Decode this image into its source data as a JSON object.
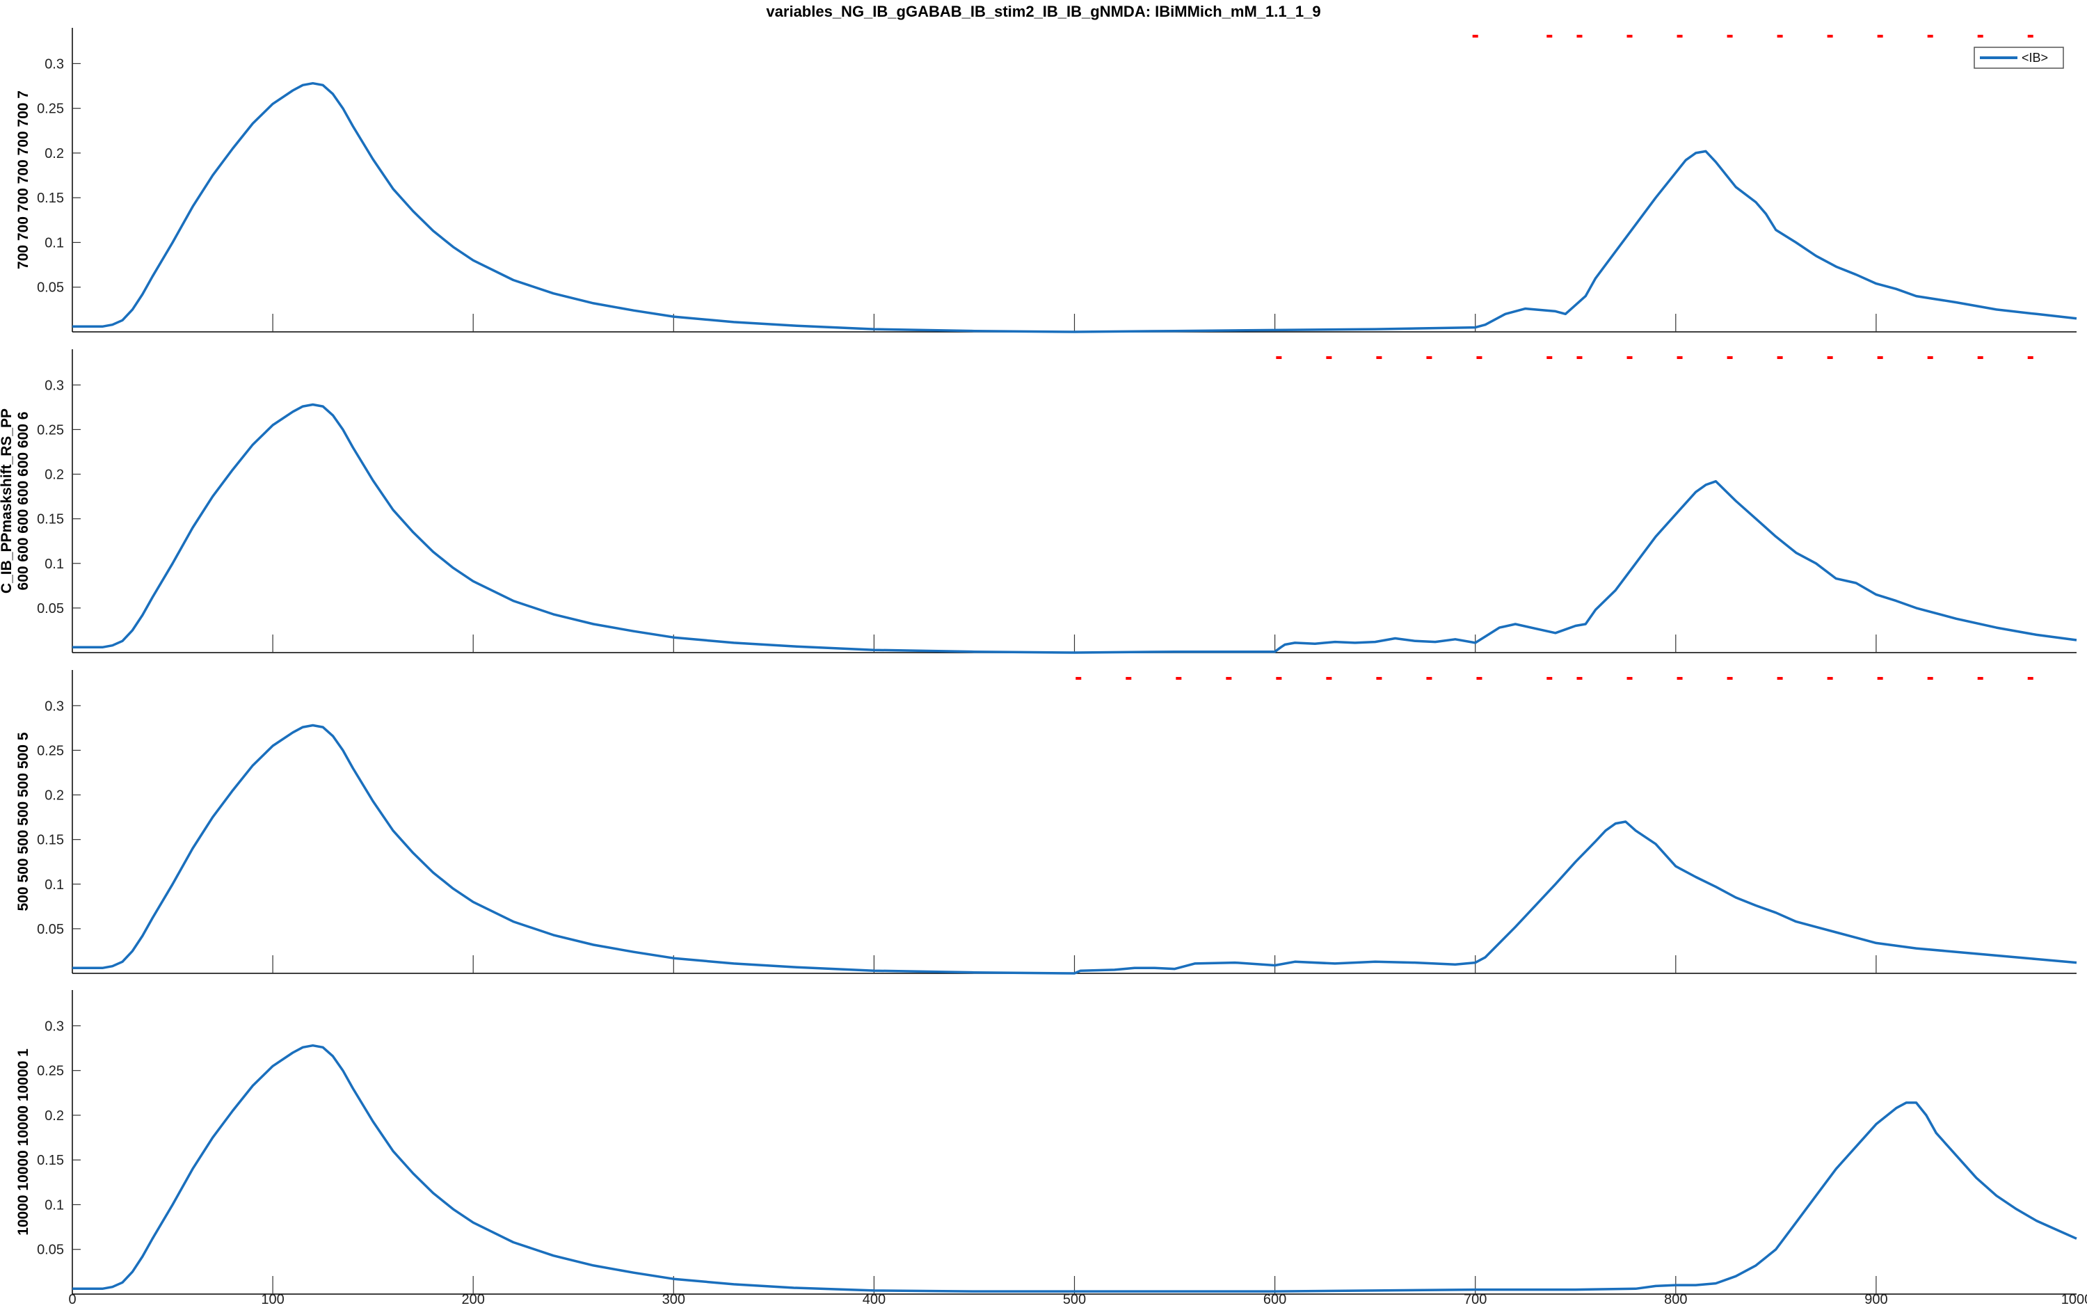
{
  "title": "variables_NG_IB_gGABAB_IB_stim2_IB_IB_gNMDA: IBiMMich_mM_1.1_1_9",
  "colors": {
    "trace": "#1a6fbd",
    "stim": "#ff0000",
    "axis": "#000000",
    "ticks": "#333333",
    "legend_border": "#555555"
  },
  "chart_data": [
    {
      "type": "line",
      "ylabel": "700 700 700 700 700 700 7",
      "xlim": [
        0,
        1000
      ],
      "ylim": [
        0,
        0.34
      ],
      "yticks": [
        0.05,
        0.1,
        0.15,
        0.2,
        0.25,
        0.3
      ],
      "ytick_labels": [
        "0.05",
        "0.1",
        "0.15",
        "0.2",
        "0.25",
        "0.3"
      ],
      "xticks": [
        100,
        200,
        300,
        400,
        500,
        600,
        700,
        800,
        900
      ],
      "legend": {
        "entries": [
          "<IB>"
        ],
        "position": "top-right"
      },
      "stim_marks": [
        700,
        737,
        752,
        777,
        802,
        827,
        852,
        877,
        902,
        927,
        952,
        977
      ],
      "series": [
        {
          "name": "<IB>",
          "x": [
            0,
            15,
            20,
            25,
            30,
            35,
            40,
            50,
            60,
            70,
            80,
            90,
            100,
            110,
            115,
            120,
            125,
            130,
            135,
            140,
            150,
            160,
            170,
            180,
            190,
            200,
            220,
            240,
            260,
            280,
            300,
            330,
            360,
            400,
            450,
            500,
            550,
            600,
            650,
            700,
            705,
            715,
            725,
            740,
            745,
            750,
            755,
            760,
            770,
            780,
            790,
            800,
            805,
            810,
            815,
            820,
            830,
            840,
            845,
            850,
            860,
            870,
            880,
            890,
            900,
            910,
            920,
            940,
            960,
            980,
            1000
          ],
          "values": [
            0.006,
            0.006,
            0.008,
            0.013,
            0.025,
            0.042,
            0.062,
            0.1,
            0.14,
            0.175,
            0.205,
            0.233,
            0.255,
            0.27,
            0.276,
            0.278,
            0.276,
            0.266,
            0.25,
            0.23,
            0.193,
            0.16,
            0.135,
            0.113,
            0.095,
            0.08,
            0.058,
            0.043,
            0.032,
            0.024,
            0.017,
            0.011,
            0.007,
            0.003,
            0.001,
            0.0,
            0.001,
            0.002,
            0.003,
            0.005,
            0.008,
            0.02,
            0.026,
            0.023,
            0.02,
            0.03,
            0.04,
            0.06,
            0.09,
            0.12,
            0.15,
            0.178,
            0.192,
            0.2,
            0.202,
            0.19,
            0.162,
            0.145,
            0.132,
            0.114,
            0.1,
            0.085,
            0.073,
            0.064,
            0.054,
            0.048,
            0.04,
            0.033,
            0.025,
            0.02,
            0.015
          ]
        }
      ]
    },
    {
      "type": "line",
      "ylabel_lines": [
        "C_IB_PPmaskshift_RS_PP",
        "600 600 600 600 600 600 6"
      ],
      "xlim": [
        0,
        1000
      ],
      "ylim": [
        0,
        0.34
      ],
      "yticks": [
        0.05,
        0.1,
        0.15,
        0.2,
        0.25,
        0.3
      ],
      "ytick_labels": [
        "0.05",
        "0.1",
        "0.15",
        "0.2",
        "0.25",
        "0.3"
      ],
      "xticks": [
        100,
        200,
        300,
        400,
        500,
        600,
        700,
        800,
        900
      ],
      "stim_marks": [
        602,
        627,
        652,
        677,
        702,
        737,
        752,
        777,
        802,
        827,
        852,
        877,
        902,
        927,
        952,
        977
      ],
      "series": [
        {
          "name": "<IB>",
          "x": [
            0,
            15,
            20,
            25,
            30,
            35,
            40,
            50,
            60,
            70,
            80,
            90,
            100,
            110,
            115,
            120,
            125,
            130,
            135,
            140,
            150,
            160,
            170,
            180,
            190,
            200,
            220,
            240,
            260,
            280,
            300,
            330,
            360,
            400,
            450,
            500,
            550,
            600,
            603,
            605,
            610,
            620,
            630,
            640,
            650,
            660,
            670,
            680,
            690,
            700,
            705,
            712,
            720,
            730,
            740,
            745,
            750,
            755,
            760,
            770,
            780,
            790,
            800,
            810,
            815,
            820,
            830,
            840,
            850,
            860,
            870,
            880,
            890,
            900,
            910,
            920,
            940,
            960,
            980,
            1000
          ],
          "values": [
            0.006,
            0.006,
            0.008,
            0.013,
            0.025,
            0.042,
            0.062,
            0.1,
            0.14,
            0.175,
            0.205,
            0.233,
            0.255,
            0.27,
            0.276,
            0.278,
            0.276,
            0.266,
            0.25,
            0.23,
            0.193,
            0.16,
            0.135,
            0.113,
            0.095,
            0.08,
            0.058,
            0.043,
            0.032,
            0.024,
            0.017,
            0.011,
            0.007,
            0.003,
            0.001,
            0.0,
            0.001,
            0.001,
            0.006,
            0.009,
            0.011,
            0.01,
            0.012,
            0.011,
            0.012,
            0.016,
            0.013,
            0.012,
            0.015,
            0.011,
            0.018,
            0.028,
            0.032,
            0.027,
            0.022,
            0.026,
            0.03,
            0.032,
            0.048,
            0.07,
            0.1,
            0.13,
            0.155,
            0.18,
            0.188,
            0.192,
            0.17,
            0.15,
            0.13,
            0.112,
            0.1,
            0.083,
            0.078,
            0.065,
            0.058,
            0.05,
            0.038,
            0.028,
            0.02,
            0.014
          ]
        }
      ]
    },
    {
      "type": "line",
      "ylabel": "500 500 500 500 500 500 5",
      "xlim": [
        0,
        1000
      ],
      "ylim": [
        0,
        0.34
      ],
      "yticks": [
        0.05,
        0.1,
        0.15,
        0.2,
        0.25,
        0.3
      ],
      "ytick_labels": [
        "0.05",
        "0.1",
        "0.15",
        "0.2",
        "0.25",
        "0.3"
      ],
      "xticks": [
        100,
        200,
        300,
        400,
        500,
        600,
        700,
        800,
        900
      ],
      "stim_marks": [
        502,
        527,
        552,
        577,
        602,
        627,
        652,
        677,
        702,
        737,
        752,
        777,
        802,
        827,
        852,
        877,
        902,
        927,
        952,
        977
      ],
      "series": [
        {
          "name": "<IB>",
          "x": [
            0,
            15,
            20,
            25,
            30,
            35,
            40,
            50,
            60,
            70,
            80,
            90,
            100,
            110,
            115,
            120,
            125,
            130,
            135,
            140,
            150,
            160,
            170,
            180,
            190,
            200,
            220,
            240,
            260,
            280,
            300,
            330,
            360,
            400,
            450,
            500,
            503,
            520,
            530,
            540,
            550,
            560,
            580,
            600,
            610,
            630,
            650,
            670,
            690,
            700,
            705,
            720,
            740,
            750,
            760,
            765,
            770,
            775,
            780,
            790,
            800,
            810,
            820,
            830,
            840,
            850,
            860,
            870,
            880,
            890,
            900,
            920,
            940,
            960,
            980,
            1000
          ],
          "values": [
            0.006,
            0.006,
            0.008,
            0.013,
            0.025,
            0.042,
            0.062,
            0.1,
            0.14,
            0.175,
            0.205,
            0.233,
            0.255,
            0.27,
            0.276,
            0.278,
            0.276,
            0.266,
            0.25,
            0.23,
            0.193,
            0.16,
            0.135,
            0.113,
            0.095,
            0.08,
            0.058,
            0.043,
            0.032,
            0.024,
            0.017,
            0.011,
            0.007,
            0.003,
            0.001,
            0.0,
            0.003,
            0.004,
            0.006,
            0.006,
            0.005,
            0.011,
            0.012,
            0.009,
            0.013,
            0.011,
            0.013,
            0.012,
            0.01,
            0.012,
            0.018,
            0.052,
            0.1,
            0.125,
            0.148,
            0.16,
            0.168,
            0.17,
            0.16,
            0.145,
            0.12,
            0.108,
            0.097,
            0.085,
            0.076,
            0.068,
            0.058,
            0.052,
            0.046,
            0.04,
            0.034,
            0.028,
            0.024,
            0.02,
            0.016,
            0.012
          ]
        }
      ]
    },
    {
      "type": "line",
      "ylabel": "10000 10000 10000 10000 1",
      "xlim": [
        0,
        1000
      ],
      "ylim": [
        0,
        0.34
      ],
      "yticks": [
        0.05,
        0.1,
        0.15,
        0.2,
        0.25,
        0.3
      ],
      "ytick_labels": [
        "0.05",
        "0.1",
        "0.15",
        "0.2",
        "0.25",
        "0.3"
      ],
      "xticks": [
        100,
        200,
        300,
        400,
        500,
        600,
        700,
        800,
        900
      ],
      "xtick_labels": [
        "0",
        "100",
        "200",
        "300",
        "400",
        "500",
        "600",
        "700",
        "800",
        "900",
        "1000"
      ],
      "xtick_label_values": [
        0,
        100,
        200,
        300,
        400,
        500,
        600,
        700,
        800,
        900,
        1000
      ],
      "stim_marks": [],
      "series": [
        {
          "name": "<IB>",
          "x": [
            0,
            15,
            20,
            25,
            30,
            35,
            40,
            50,
            60,
            70,
            80,
            90,
            100,
            110,
            115,
            120,
            125,
            130,
            135,
            140,
            150,
            160,
            170,
            180,
            190,
            200,
            220,
            240,
            260,
            280,
            300,
            330,
            360,
            400,
            450,
            500,
            550,
            600,
            650,
            700,
            750,
            780,
            790,
            800,
            810,
            820,
            830,
            840,
            850,
            860,
            870,
            880,
            890,
            900,
            910,
            915,
            920,
            925,
            930,
            940,
            950,
            960,
            970,
            980,
            990,
            1000
          ],
          "values": [
            0.006,
            0.006,
            0.008,
            0.013,
            0.025,
            0.042,
            0.062,
            0.1,
            0.14,
            0.175,
            0.205,
            0.233,
            0.255,
            0.27,
            0.276,
            0.278,
            0.276,
            0.266,
            0.25,
            0.23,
            0.193,
            0.16,
            0.135,
            0.113,
            0.095,
            0.08,
            0.058,
            0.043,
            0.032,
            0.024,
            0.017,
            0.011,
            0.007,
            0.004,
            0.003,
            0.003,
            0.003,
            0.003,
            0.004,
            0.005,
            0.005,
            0.006,
            0.009,
            0.01,
            0.01,
            0.012,
            0.02,
            0.032,
            0.05,
            0.08,
            0.11,
            0.14,
            0.165,
            0.19,
            0.208,
            0.214,
            0.214,
            0.2,
            0.18,
            0.155,
            0.13,
            0.11,
            0.095,
            0.082,
            0.072,
            0.062
          ]
        }
      ]
    }
  ]
}
